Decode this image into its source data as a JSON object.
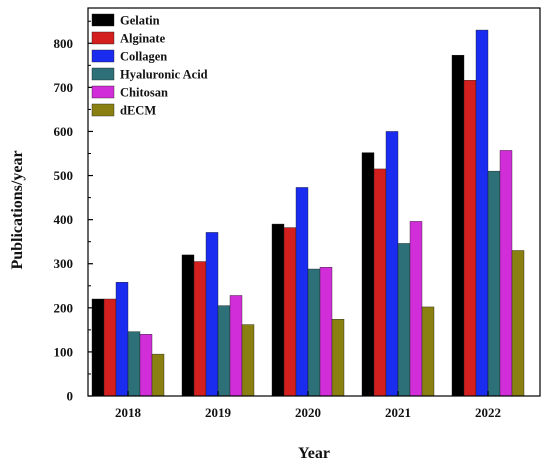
{
  "chart_data": {
    "type": "bar",
    "title": "",
    "xlabel": "Year",
    "ylabel": "Publications/year",
    "categories": [
      "2018",
      "2019",
      "2020",
      "2021",
      "2022"
    ],
    "ylim": [
      0,
      880
    ],
    "yticks": [
      0,
      100,
      200,
      300,
      400,
      500,
      600,
      700,
      800
    ],
    "grid": false,
    "legend_position": "top-left",
    "series": [
      {
        "name": "Gelatin",
        "color": "#000000",
        "values": [
          220,
          320,
          390,
          552,
          773
        ]
      },
      {
        "name": "Alginate",
        "color": "#d41f1f",
        "values": [
          220,
          305,
          382,
          515,
          716
        ]
      },
      {
        "name": "Collagen",
        "color": "#1a2cf0",
        "values": [
          258,
          371,
          473,
          600,
          830
        ]
      },
      {
        "name": "Hyaluronic Acid",
        "color": "#2e7078",
        "values": [
          146,
          205,
          288,
          346,
          510
        ]
      },
      {
        "name": "Chitosan",
        "color": "#d12ed9",
        "values": [
          140,
          228,
          292,
          396,
          557
        ]
      },
      {
        "name": "dECM",
        "color": "#8a8012",
        "values": [
          95,
          162,
          174,
          202,
          330
        ]
      }
    ]
  }
}
